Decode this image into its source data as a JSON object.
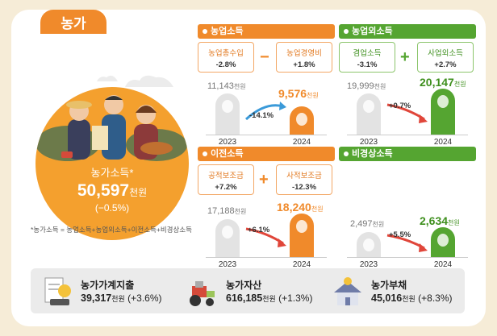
{
  "title": "농가",
  "hero": {
    "label": "농가소득*",
    "value": "50,597",
    "unit": "천원",
    "change": "(−0.5%)"
  },
  "footnote": "*농가소득 = 농업소득+농업외소득+이전소득+비경상소득",
  "sections": {
    "agri": {
      "title": "농업소득",
      "pill1": {
        "name": "농업총수입",
        "value": "-2.8%"
      },
      "op": "−",
      "pill2": {
        "name": "농업경영비",
        "value": "+1.8%"
      },
      "v2023": "11,143",
      "v2024": "9,576",
      "unit": "천원",
      "change": "-14.1%",
      "y1": "2023",
      "y2": "2024"
    },
    "nonagri": {
      "title": "농업외소득",
      "pill1": {
        "name": "겸업소득",
        "value": "-3.1%"
      },
      "op": "+",
      "pill2": {
        "name": "사업외소득",
        "value": "+2.7%"
      },
      "v2023": "19,999",
      "v2024": "20,147",
      "unit": "천원",
      "change": "+0.7%",
      "y1": "2023",
      "y2": "2024"
    },
    "transfer": {
      "title": "이전소득",
      "pill1": {
        "name": "공적보조금",
        "value": "+7.2%"
      },
      "op": "+",
      "pill2": {
        "name": "사적보조금",
        "value": "-12.3%"
      },
      "v2023": "17,188",
      "v2024": "18,240",
      "unit": "천원",
      "change": "+6.1%",
      "y1": "2023",
      "y2": "2024"
    },
    "irregular": {
      "title": "비경상소득",
      "v2023": "2,497",
      "v2024": "2,634",
      "unit": "천원",
      "change": "+5.5%",
      "y1": "2023",
      "y2": "2024"
    }
  },
  "bottom": {
    "spending": {
      "title": "농가가계지출",
      "value": "39,317",
      "unit": "천원",
      "change": "(+3.6%)"
    },
    "assets": {
      "title": "농가자산",
      "value": "616,185",
      "unit": "천원",
      "change": "(+1.3%)"
    },
    "debt": {
      "title": "농가부채",
      "value": "45,016",
      "unit": "천원",
      "change": "(+8.3%)"
    }
  },
  "colors": {
    "orange": "#f08a2b",
    "green": "#55a531",
    "background": "#f6ecd7"
  }
}
